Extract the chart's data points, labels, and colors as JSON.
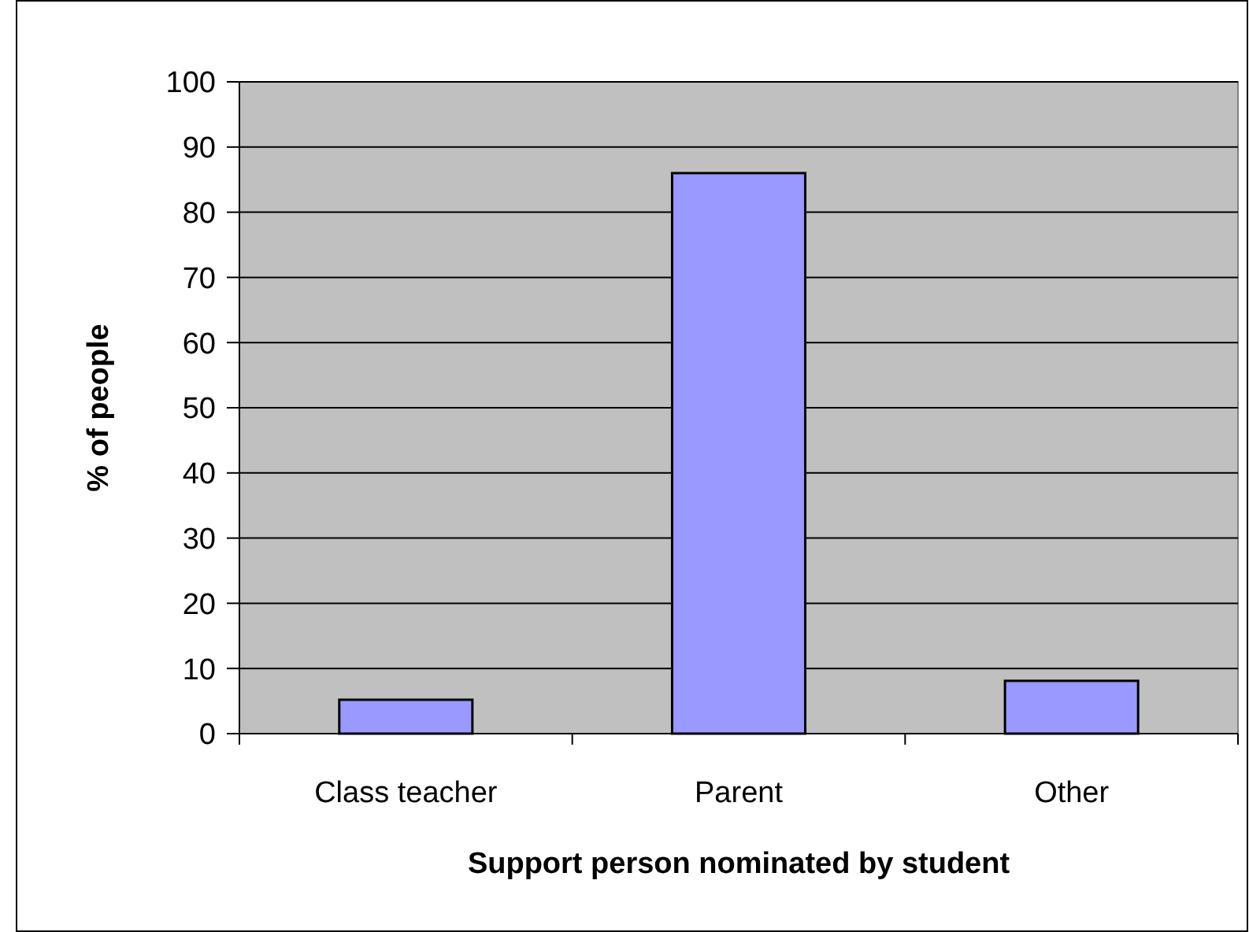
{
  "chart_data": {
    "type": "bar",
    "xlabel": "Support person nominated by student",
    "ylabel": "% of people",
    "categories": [
      "Class teacher",
      "Parent",
      "Other"
    ],
    "values": [
      5.2,
      86,
      8.1
    ],
    "color": "#9999ff",
    "ylim": [
      0,
      100
    ],
    "yticks": [
      0,
      10,
      20,
      30,
      40,
      50,
      60,
      70,
      80,
      90,
      100
    ],
    "grid": "y"
  }
}
